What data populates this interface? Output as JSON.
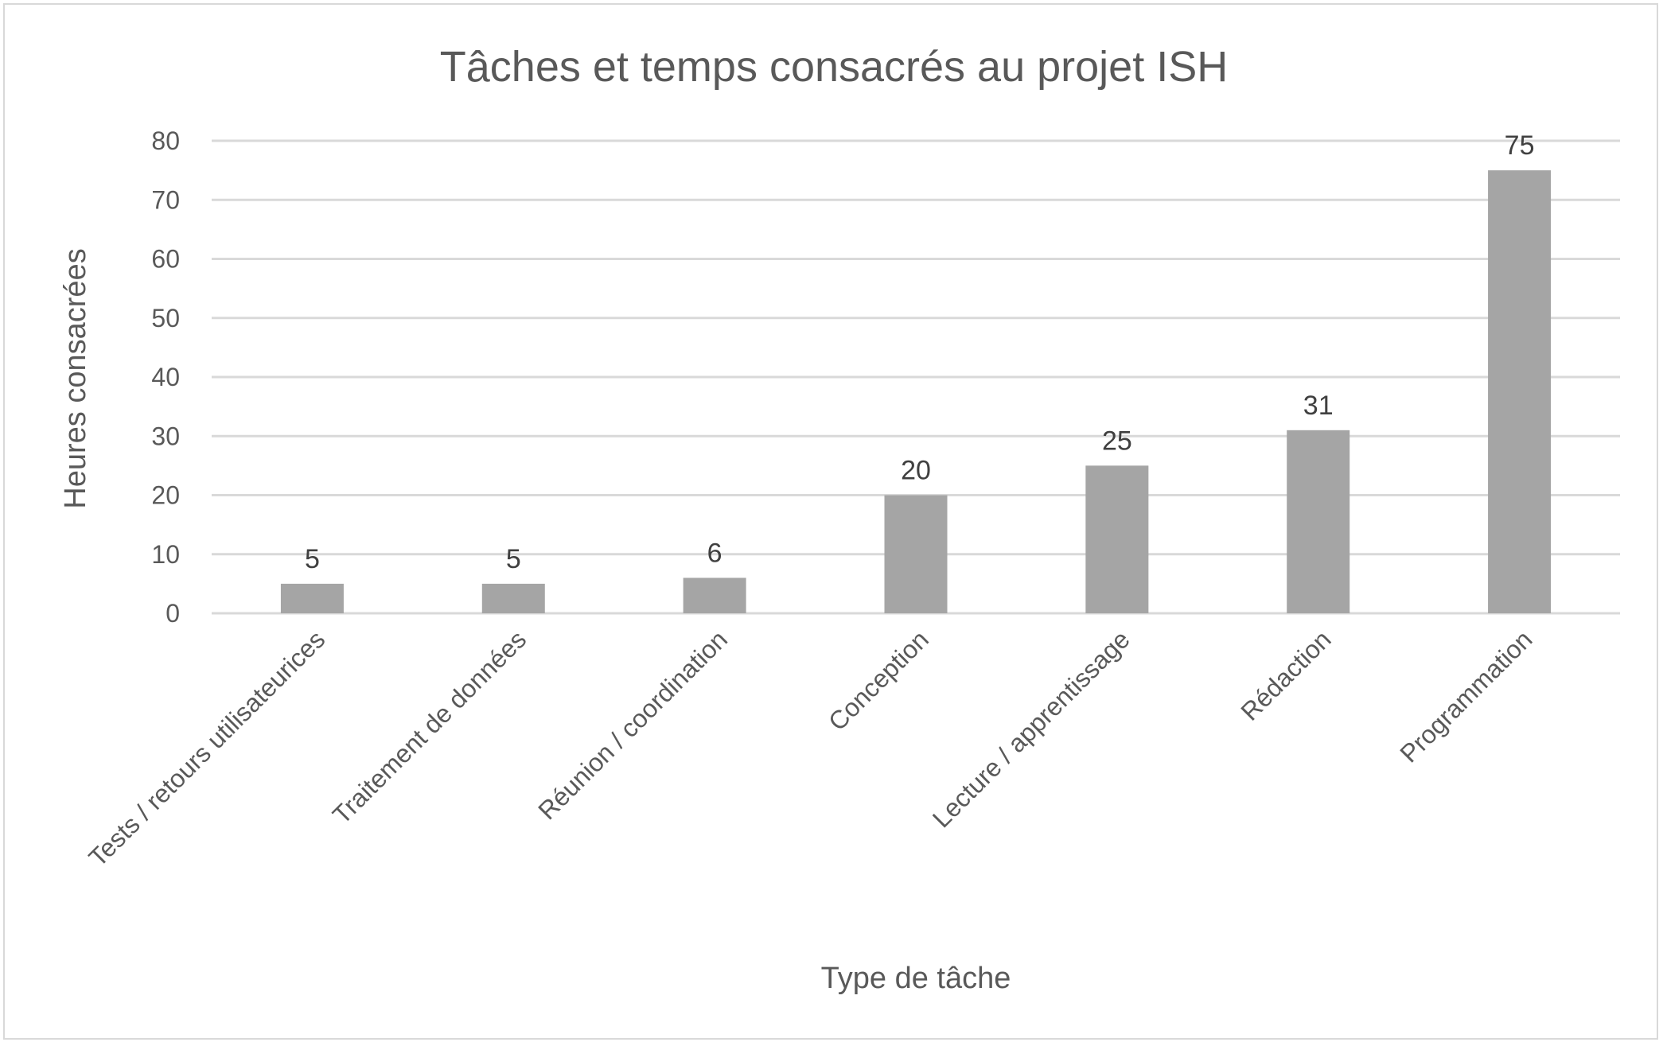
{
  "chart_data": {
    "type": "bar",
    "title": "Tâches et temps consacrés au projet ISH",
    "xlabel": "Type de tâche",
    "ylabel": "Heures consacrées",
    "categories": [
      "Tests / retours utilisateurices",
      "Traitement de données",
      "Réunion / coordination",
      "Conception",
      "Lecture / apprentissage",
      "Rédaction",
      "Programmation"
    ],
    "values": [
      5,
      5,
      6,
      20,
      25,
      31,
      75
    ],
    "ylim": [
      0,
      80
    ],
    "yticks": [
      0,
      10,
      20,
      30,
      40,
      50,
      60,
      70,
      80
    ],
    "grid": true,
    "legend": "none",
    "data_labels": true,
    "colors": {
      "bar": "#a5a5a5",
      "grid": "#d9d9d9",
      "text": "#595959",
      "frame": "#d9d9d9"
    }
  }
}
